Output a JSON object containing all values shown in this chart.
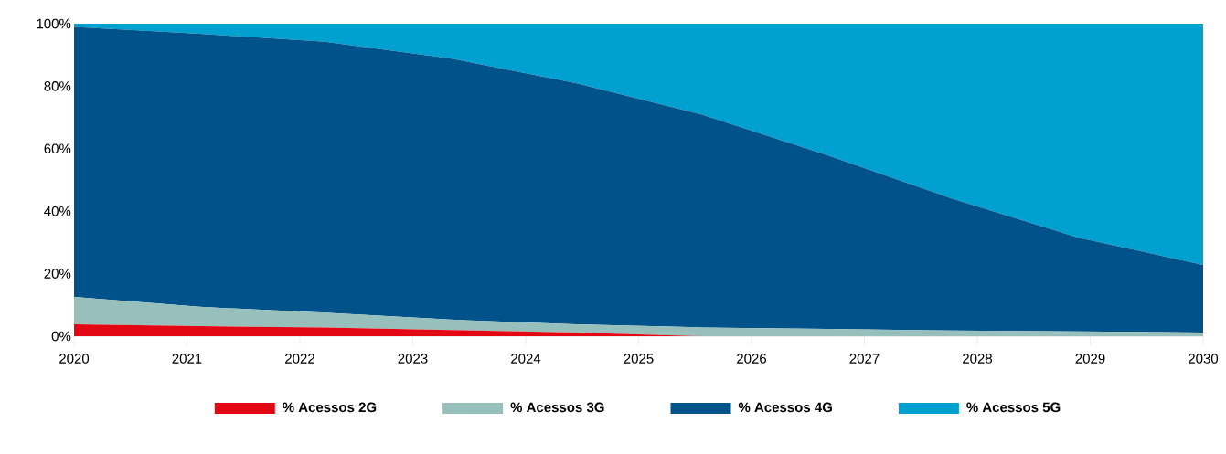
{
  "chart_data": {
    "type": "area",
    "stacked": true,
    "legend": "bottom",
    "x": [
      2020,
      2021.111,
      2022.222,
      2023.333,
      2024.444,
      2025.556,
      2026.667,
      2027.778,
      2028.889,
      2030
    ],
    "xlim": [
      2020,
      2030
    ],
    "xticks": [
      2020,
      2021,
      2022,
      2023,
      2024,
      2025,
      2026,
      2027,
      2028,
      2029,
      2030
    ],
    "ylim": [
      0,
      100
    ],
    "yticks": [
      {
        "value": 0,
        "label": "0%"
      },
      {
        "value": 20,
        "label": "20%"
      },
      {
        "value": 40,
        "label": "40%"
      },
      {
        "value": 60,
        "label": "60%"
      },
      {
        "value": 80,
        "label": "80%"
      },
      {
        "value": 100,
        "label": "100%"
      }
    ],
    "series": [
      {
        "name": "% Acessos 2G",
        "color": "#e30613",
        "values": [
          3.8,
          3.2,
          2.8,
          2.0,
          1.2,
          0,
          0,
          0,
          0,
          0
        ]
      },
      {
        "name": "% Acessos 3G",
        "color": "#97bfbb",
        "values": [
          8.8,
          6.2,
          4.7,
          3.3,
          2.6,
          2.8,
          2.3,
          1.8,
          1.5,
          1.2
        ]
      },
      {
        "name": "% Acessos 4G",
        "color": "#00528a",
        "values": [
          86.4,
          87.4,
          86.7,
          83.6,
          77.2,
          68.2,
          55.7,
          42.2,
          30.1,
          21.6
        ]
      },
      {
        "name": "% Acessos 5G",
        "color": "#00a0d0",
        "values": [
          1.0,
          3.2,
          5.8,
          11.1,
          19.0,
          29.0,
          42.0,
          56.0,
          68.4,
          77.2
        ]
      }
    ]
  }
}
